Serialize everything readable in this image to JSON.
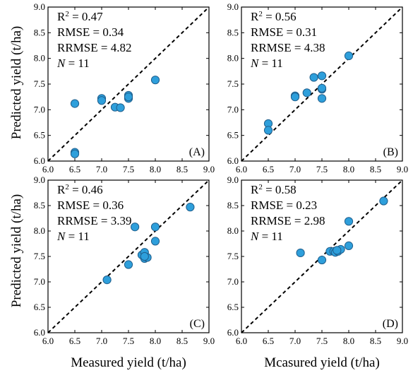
{
  "figure": {
    "ylabel": "Predicted yield (t/ha)",
    "xlabels": [
      "Measured yield (t/ha)",
      "Mcasured yield (t/ha)"
    ]
  },
  "chart_data": [
    {
      "type": "scatter",
      "panel_label": "(A)",
      "xlim": [
        6.0,
        9.0
      ],
      "ylim": [
        6.0,
        9.0
      ],
      "xticks": [
        "6.0",
        "6.5",
        "7.0",
        "7.5",
        "8.0",
        "8.5",
        "9.0"
      ],
      "yticks": [
        "6.0",
        "6.5",
        "7.0",
        "7.5",
        "8.0",
        "8.5",
        "9.0"
      ],
      "stats": {
        "r2": "0.47",
        "rmse": "0.34",
        "rrmse": "4.82",
        "n": "11"
      },
      "points": [
        {
          "x": 6.5,
          "y": 7.12
        },
        {
          "x": 6.5,
          "y": 6.17
        },
        {
          "x": 6.5,
          "y": 6.14
        },
        {
          "x": 7.0,
          "y": 7.22
        },
        {
          "x": 7.0,
          "y": 7.18
        },
        {
          "x": 7.25,
          "y": 7.05
        },
        {
          "x": 7.35,
          "y": 7.04
        },
        {
          "x": 7.5,
          "y": 7.28
        },
        {
          "x": 7.5,
          "y": 7.22
        },
        {
          "x": 8.0,
          "y": 7.58
        },
        {
          "x": 7.5,
          "y": 7.25
        }
      ]
    },
    {
      "type": "scatter",
      "panel_label": "(B)",
      "xlim": [
        6.0,
        9.0
      ],
      "ylim": [
        6.0,
        9.0
      ],
      "xticks": [
        "6.0",
        "6.5",
        "7.0",
        "7.5",
        "8.0",
        "8.5",
        "9.0"
      ],
      "yticks": [
        "6.0",
        "6.5",
        "7.0",
        "7.5",
        "8.0",
        "8.5",
        "9.0"
      ],
      "stats": {
        "r2": "0.56",
        "rmse": "0.31",
        "rrmse": "4.38",
        "n": "11"
      },
      "points": [
        {
          "x": 6.5,
          "y": 6.73
        },
        {
          "x": 6.5,
          "y": 6.6
        },
        {
          "x": 7.0,
          "y": 7.27
        },
        {
          "x": 7.0,
          "y": 7.25
        },
        {
          "x": 7.22,
          "y": 7.33
        },
        {
          "x": 7.35,
          "y": 7.63
        },
        {
          "x": 7.5,
          "y": 7.66
        },
        {
          "x": 7.5,
          "y": 7.4
        },
        {
          "x": 7.5,
          "y": 7.22
        },
        {
          "x": 8.0,
          "y": 8.05
        },
        {
          "x": 7.5,
          "y": 7.42
        }
      ]
    },
    {
      "type": "scatter",
      "panel_label": "(C)",
      "xlim": [
        6.0,
        9.0
      ],
      "ylim": [
        6.0,
        9.0
      ],
      "xticks": [
        "6.0",
        "6.5",
        "7.0",
        "7.5",
        "8.0",
        "8.5",
        "9.0"
      ],
      "yticks": [
        "6.0",
        "6.5",
        "7.0",
        "7.5",
        "8.0",
        "8.5",
        "9.0"
      ],
      "stats": {
        "r2": "0.46",
        "rmse": "0.36",
        "rrmse": "3.39",
        "n": "11"
      },
      "points": [
        {
          "x": 7.1,
          "y": 7.04
        },
        {
          "x": 7.5,
          "y": 7.34
        },
        {
          "x": 7.62,
          "y": 8.08
        },
        {
          "x": 7.75,
          "y": 7.53
        },
        {
          "x": 7.8,
          "y": 7.58
        },
        {
          "x": 7.8,
          "y": 7.46
        },
        {
          "x": 7.85,
          "y": 7.48
        },
        {
          "x": 8.0,
          "y": 8.08
        },
        {
          "x": 8.0,
          "y": 7.8
        },
        {
          "x": 8.65,
          "y": 8.47
        },
        {
          "x": 7.8,
          "y": 7.5
        }
      ]
    },
    {
      "type": "scatter",
      "panel_label": "(D)",
      "xlim": [
        6.0,
        9.0
      ],
      "ylim": [
        6.0,
        9.0
      ],
      "xticks": [
        "6.0",
        "6.5",
        "7.0",
        "7.5",
        "8.0",
        "8.5",
        "9.0"
      ],
      "yticks": [
        "6.0",
        "6.5",
        "7.0",
        "7.5",
        "8.0",
        "8.5",
        "9.0"
      ],
      "stats": {
        "r2": "0.58",
        "rmse": "0.23",
        "rrmse": "2.98",
        "n": "11"
      },
      "points": [
        {
          "x": 7.1,
          "y": 7.57
        },
        {
          "x": 7.5,
          "y": 7.43
        },
        {
          "x": 7.65,
          "y": 7.6
        },
        {
          "x": 7.72,
          "y": 7.6
        },
        {
          "x": 7.75,
          "y": 7.58
        },
        {
          "x": 7.8,
          "y": 7.6
        },
        {
          "x": 7.85,
          "y": 7.64
        },
        {
          "x": 8.0,
          "y": 8.19
        },
        {
          "x": 8.0,
          "y": 7.71
        },
        {
          "x": 8.65,
          "y": 8.59
        },
        {
          "x": 7.78,
          "y": 7.62
        }
      ]
    }
  ],
  "style": {
    "marker_fill": "#2E9FDB",
    "marker_stroke": "#1F5E8C",
    "line_color": "#000000"
  }
}
